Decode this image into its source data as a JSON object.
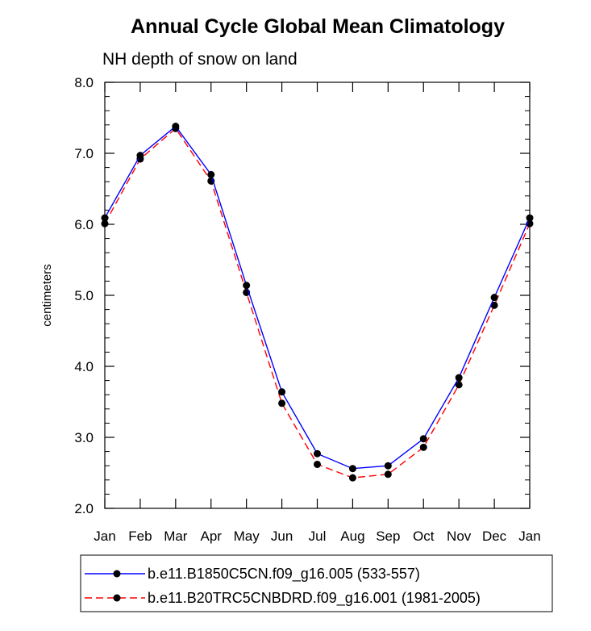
{
  "chart_data": {
    "type": "line",
    "title": "Annual Cycle Global Mean Climatology",
    "subtitle": "NH depth of snow on land",
    "xlabel": "",
    "ylabel": "centimeters",
    "categories": [
      "Jan",
      "Feb",
      "Mar",
      "Apr",
      "May",
      "Jun",
      "Jul",
      "Aug",
      "Sep",
      "Oct",
      "Nov",
      "Dec",
      "Jan"
    ],
    "ylim": [
      2.0,
      8.0
    ],
    "yticks": [
      "2.0",
      "3.0",
      "4.0",
      "5.0",
      "6.0",
      "7.0",
      "8.0"
    ],
    "grid": false,
    "legend_position": "bottom",
    "series": [
      {
        "name": "b.e11.B1850C5CN.f09_g16.005 (533-557)",
        "color": "#0000ff",
        "dash": "solid",
        "marker": "filled-circle",
        "values": [
          6.09,
          6.97,
          7.38,
          6.7,
          5.14,
          3.64,
          2.77,
          2.56,
          2.6,
          2.98,
          3.84,
          4.97,
          6.09
        ]
      },
      {
        "name": "b.e11.B20TRC5CNBDRD.f09_g16.001 (1981-2005)",
        "color": "#ff0000",
        "dash": "dashed",
        "marker": "filled-circle",
        "values": [
          6.01,
          6.92,
          7.35,
          6.61,
          5.04,
          3.48,
          2.62,
          2.43,
          2.48,
          2.86,
          3.74,
          4.86,
          6.01
        ]
      }
    ]
  }
}
